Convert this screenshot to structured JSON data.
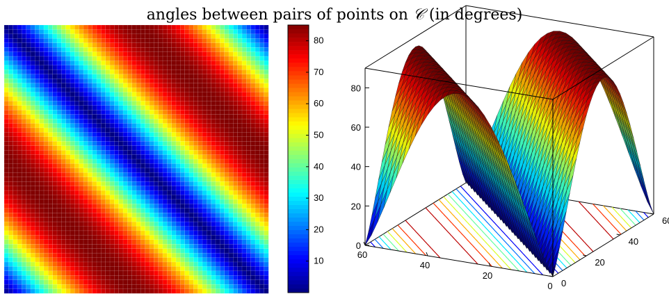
{
  "chart_data": {
    "title": {
      "prefix": "angles between pairs of points on ",
      "symbol": "𝒞",
      "suffix": " (in degrees)"
    },
    "panels": [
      {
        "type": "heatmap",
        "description_of_content": "pairwise angle matrix, 60 x 60",
        "grid_size": 60,
        "colormap": "jet",
        "clim": [
          0,
          85
        ],
        "zero_band": "main diagonal (i = j)",
        "max_band": "anti-diagonal corners, ~85",
        "xticks": [],
        "yticks": []
      },
      {
        "type": "colorbar",
        "ticks": [
          10,
          20,
          30,
          40,
          50,
          60,
          70,
          80
        ],
        "clim": [
          0,
          85
        ],
        "colormap": "jet"
      },
      {
        "type": "surface",
        "grid_size": 60,
        "zlim": [
          0,
          90
        ],
        "zticks": [
          0,
          20,
          40,
          60,
          80
        ],
        "xticks": [
          0,
          20,
          40,
          60
        ],
        "yticks": [
          0,
          20,
          40,
          60
        ],
        "contours_on_floor": true,
        "colormap": "jet"
      }
    ]
  }
}
